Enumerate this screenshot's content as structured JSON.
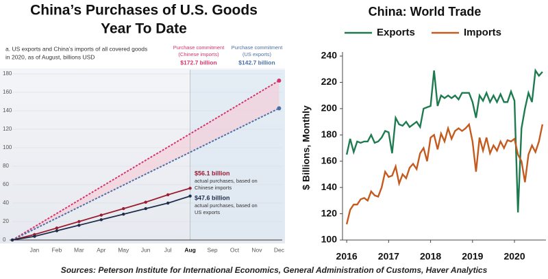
{
  "chart_data": [
    {
      "type": "line",
      "title": [
        "China’s Purchases of U.S. Goods",
        "Year To Date"
      ],
      "subtitle": [
        "a. US exports and China’s imports of all covered goods",
        "in 2020, as of August, billions USD"
      ],
      "categories": [
        null,
        "Jan",
        "Feb",
        "Mar",
        "Apr",
        "May",
        "Jun",
        "Jul",
        "Aug",
        "Sep",
        "Oct",
        "Nov",
        "Dec"
      ],
      "series": [
        {
          "color": "#d6336c",
          "dashed": true,
          "values": [
            0,
            14.4,
            28.8,
            43.2,
            57.6,
            72,
            86.4,
            100.7,
            115.1,
            129.5,
            143.9,
            158.3,
            172.7
          ],
          "value_labels": [
            null,
            null,
            null,
            null,
            null,
            null,
            null,
            null,
            null,
            null,
            null,
            null,
            "$172.7 billion"
          ]
        },
        {
          "color": "#4a6fa5",
          "dashed": true,
          "values": [
            0,
            11.9,
            23.8,
            35.7,
            47.6,
            59.5,
            71.4,
            83.2,
            95.1,
            107.0,
            118.9,
            130.8,
            142.7
          ],
          "value_labels": [
            null,
            null,
            null,
            null,
            null,
            null,
            null,
            null,
            null,
            null,
            null,
            null,
            "$142.7 billion"
          ]
        },
        {
          "color": "#9b1b30",
          "dashed": false,
          "values": [
            0,
            6,
            13,
            20,
            27,
            34,
            41,
            49,
            56.1,
            null,
            null,
            null,
            null
          ],
          "value_labels": [
            null,
            null,
            null,
            null,
            null,
            null,
            null,
            null,
            "$56.1 billion",
            null,
            null,
            null,
            null
          ]
        },
        {
          "color": "#1f2d4a",
          "dashed": false,
          "values": [
            0,
            4,
            10,
            16,
            22,
            28,
            34,
            40,
            47.6,
            null,
            null,
            null,
            null
          ],
          "value_labels": [
            null,
            null,
            null,
            null,
            null,
            null,
            null,
            null,
            "$47.6 billion",
            null,
            null,
            null,
            null
          ]
        }
      ],
      "annotations": [
        "Purchase commitment",
        "(Chinese imports)",
        "Purchase commitment",
        "(US exports)",
        "actual purchases, based on",
        "Chinese imports",
        "actual purchases, based on",
        "US exports"
      ],
      "ylim": [
        0,
        180
      ],
      "yticks": [
        0,
        20,
        40,
        60,
        80,
        100,
        120,
        140,
        160,
        180
      ],
      "grid": true
    },
    {
      "type": "line",
      "title": "China: World Trade",
      "ylabel": "$ Billions, Monthly",
      "x": [
        2016,
        2016.083,
        2016.167,
        2016.25,
        2016.333,
        2016.417,
        2016.5,
        2016.583,
        2016.667,
        2016.75,
        2016.833,
        2016.917,
        2017,
        2017.083,
        2017.167,
        2017.25,
        2017.333,
        2017.417,
        2017.5,
        2017.583,
        2017.667,
        2017.75,
        2017.833,
        2017.917,
        2018,
        2018.083,
        2018.167,
        2018.25,
        2018.333,
        2018.417,
        2018.5,
        2018.583,
        2018.667,
        2018.75,
        2018.833,
        2018.917,
        2019,
        2019.083,
        2019.167,
        2019.25,
        2019.333,
        2019.417,
        2019.5,
        2019.583,
        2019.667,
        2019.75,
        2019.833,
        2019.917,
        2020,
        2020.083,
        2020.167,
        2020.25,
        2020.333,
        2020.417,
        2020.5,
        2020.583,
        2020.667
      ],
      "series": [
        {
          "name": "Exports",
          "color": "#1e7a4f",
          "values": [
            165,
            177,
            167,
            175,
            174,
            175,
            175,
            180,
            174,
            175,
            178,
            183,
            182,
            166,
            193,
            188,
            187,
            190,
            186,
            188,
            190,
            186,
            200,
            201,
            202,
            229,
            202,
            210,
            208,
            210,
            208,
            210,
            207,
            212,
            212,
            212,
            205,
            193,
            210,
            206,
            212,
            205,
            210,
            205,
            211,
            205,
            205,
            213,
            206,
            121,
            185,
            200,
            212,
            205,
            229,
            225,
            228
          ]
        },
        {
          "name": "Imports",
          "color": "#c55a1e",
          "values": [
            112,
            123,
            127,
            127,
            131,
            132,
            130,
            137,
            134,
            133,
            140,
            152,
            148,
            149,
            156,
            143,
            150,
            147,
            155,
            158,
            154,
            166,
            170,
            160,
            178,
            180,
            169,
            181,
            175,
            185,
            177,
            183,
            185,
            183,
            185,
            188,
            175,
            152,
            178,
            168,
            178,
            166,
            172,
            168,
            175,
            170,
            176,
            175,
            177,
            165,
            160,
            144,
            165,
            172,
            167,
            175,
            188
          ]
        }
      ],
      "xlim": [
        2015.9,
        2020.75
      ],
      "xticks": [
        2016,
        2017,
        2018,
        2019,
        2020
      ],
      "ylim": [
        100,
        240
      ],
      "yticks": [
        100,
        120,
        140,
        160,
        180,
        200,
        220,
        240
      ],
      "legend": "top"
    }
  ],
  "source": "Sources: Peterson Institute for International Economics, General Administration of Customs, Haver Analytics"
}
